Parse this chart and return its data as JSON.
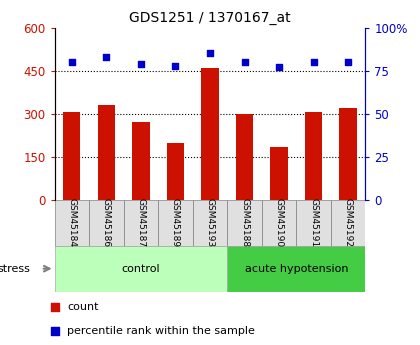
{
  "title": "GDS1251 / 1370167_at",
  "samples": [
    "GSM45184",
    "GSM45186",
    "GSM45187",
    "GSM45189",
    "GSM45193",
    "GSM45188",
    "GSM45190",
    "GSM45191",
    "GSM45192"
  ],
  "counts": [
    305,
    330,
    270,
    200,
    460,
    300,
    185,
    305,
    320
  ],
  "percentiles": [
    80,
    83,
    79,
    78,
    85,
    80,
    77,
    80,
    80
  ],
  "groups": [
    {
      "label": "control",
      "start": 0,
      "end": 5,
      "color": "#bbffbb"
    },
    {
      "label": "acute hypotension",
      "start": 5,
      "end": 9,
      "color": "#44cc44"
    }
  ],
  "bar_color": "#cc1100",
  "dot_color": "#0000cc",
  "left_ylim": [
    0,
    600
  ],
  "left_yticks": [
    0,
    150,
    300,
    450,
    600
  ],
  "right_ylim": [
    0,
    100
  ],
  "right_yticks": [
    0,
    25,
    50,
    75,
    100
  ],
  "right_yticklabels": [
    "0",
    "25",
    "50",
    "75",
    "100%"
  ],
  "grid_values": [
    150,
    300,
    450
  ],
  "stress_label": "stress",
  "legend_count_label": "count",
  "legend_percentile_label": "percentile rank within the sample",
  "bar_width": 0.5,
  "sample_bg_color": "#e0e0e0",
  "fig_bg": "white"
}
